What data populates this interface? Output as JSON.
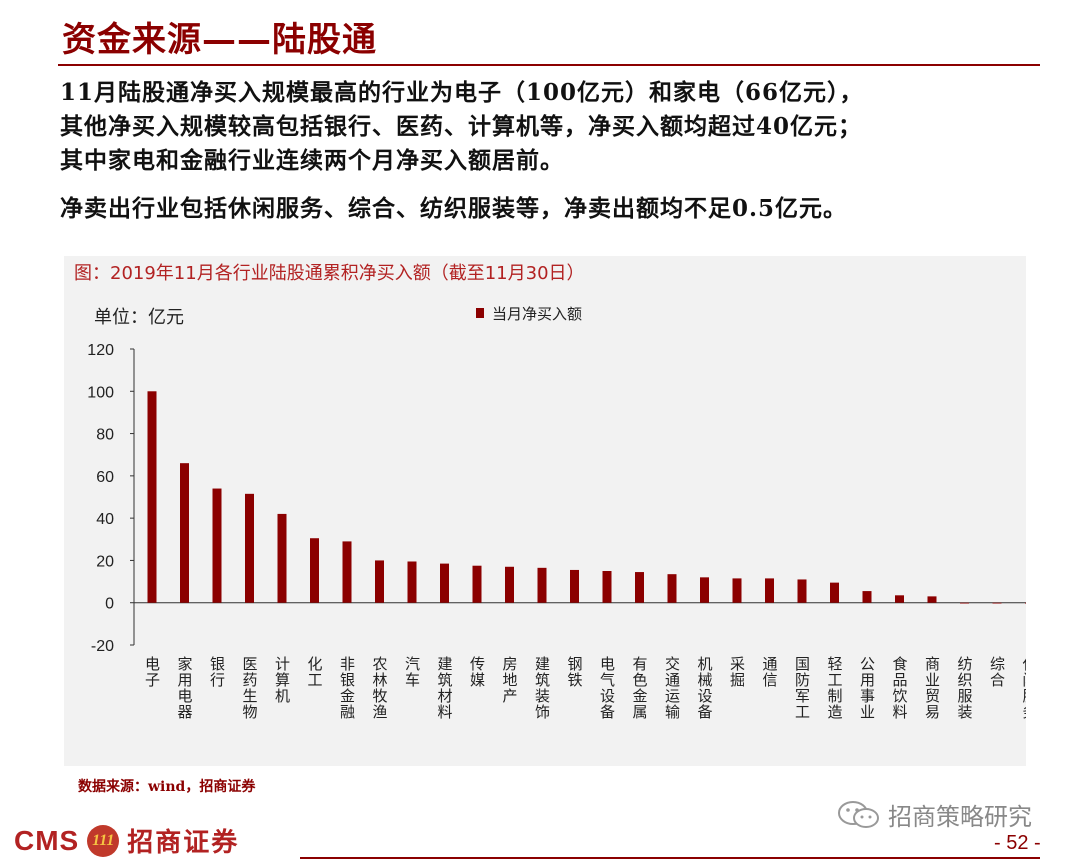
{
  "header": {
    "title": "资金来源——陆股通"
  },
  "summary": {
    "p1_lines": [
      "11月陆股通净买入规模最高的行业为电子（100亿元）和家电（66亿元），",
      "其他净买入规模较高包括银行、医药、计算机等，净买入额均超过40亿元；",
      "其中家电和金融行业连续两个月净买入额居前。"
    ],
    "p2": "净卖出行业包括休闲服务、综合、纺织服装等，净卖出额均不足0.5亿元。"
  },
  "chart_title": "图：2019年11月各行业陆股通累积净买入额（截至11月30日）",
  "chart_data": {
    "type": "bar",
    "unit_label": "单位：亿元",
    "categories": [
      "电子",
      "家用电器",
      "银行",
      "医药生物",
      "计算机",
      "化工",
      "非银金融",
      "农林牧渔",
      "汽车",
      "建筑材料",
      "传媒",
      "房地产",
      "建筑装饰",
      "钢铁",
      "电气设备",
      "有色金属",
      "交通运输",
      "机械设备",
      "采掘",
      "通信",
      "国防军工",
      "轻工制造",
      "公用事业",
      "食品饮料",
      "商业贸易",
      "纺织服装",
      "综合",
      "休闲服务"
    ],
    "series": [
      {
        "name": "当月净买入额",
        "values": [
          100,
          66,
          54,
          51.5,
          42,
          30.5,
          29,
          20,
          19.5,
          18.5,
          17.5,
          17,
          16.5,
          15.5,
          15,
          14.5,
          13.5,
          12,
          11.5,
          11.5,
          11,
          9.5,
          5.5,
          3.5,
          3,
          -0.1,
          -0.2,
          -0.4
        ],
        "color": "#8b0000"
      }
    ],
    "ylim": [
      -20,
      120
    ],
    "yticks": [
      -20,
      0,
      20,
      40,
      60,
      80,
      100,
      120
    ],
    "legend_position": "top"
  },
  "footer": {
    "source": "数据来源：wind，招商证券",
    "wechat": "招商策略研究",
    "logo_cms": "CMS",
    "logo_badge": "111",
    "logo_cn": "招商证券",
    "page": "- 52 -"
  }
}
